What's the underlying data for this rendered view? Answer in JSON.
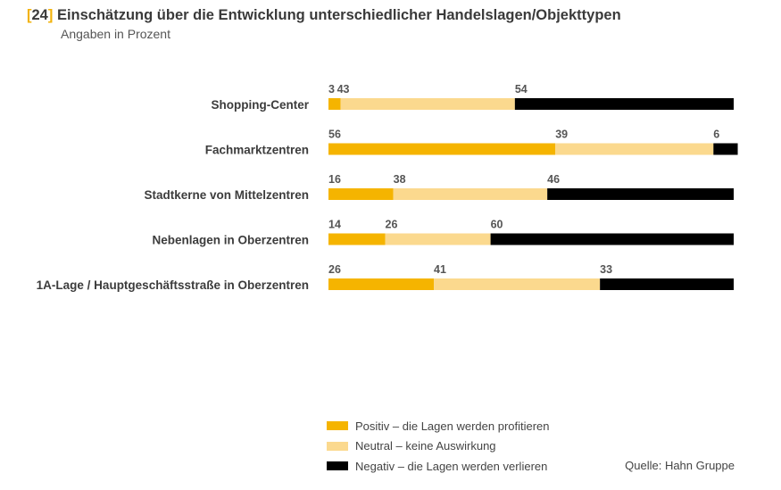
{
  "header": {
    "fig_open": "[",
    "fig_number": "24",
    "fig_close": "]",
    "title": "Einschätzung über die Entwicklung unterschiedlicher Handelslagen/Objekttypen",
    "subtitle": "Angaben in Prozent"
  },
  "chart_data": {
    "type": "bar",
    "orientation": "horizontal",
    "stacked": true,
    "categories": [
      "Shopping-Center",
      "Fachmarktzentren",
      "Stadtkerne von Mittelzentren",
      "Nebenlagen in Oberzentren",
      "1A-Lage / Hauptgeschäftsstraße in Oberzentren"
    ],
    "series": [
      {
        "name": "Positiv – die Lagen werden profitieren",
        "color": "#f5b400",
        "values": [
          3,
          56,
          16,
          14,
          26
        ]
      },
      {
        "name": "Neutral – keine Auswirkung",
        "color": "#fbd98e",
        "values": [
          43,
          39,
          38,
          26,
          41
        ]
      },
      {
        "name": "Negativ – die Lagen werden verlieren",
        "color": "#000000",
        "values": [
          54,
          6,
          46,
          60,
          33
        ]
      }
    ],
    "xlim": [
      0,
      100
    ],
    "grid": false,
    "legend_position": "bottom-left"
  },
  "source": "Quelle: Hahn Gruppe"
}
